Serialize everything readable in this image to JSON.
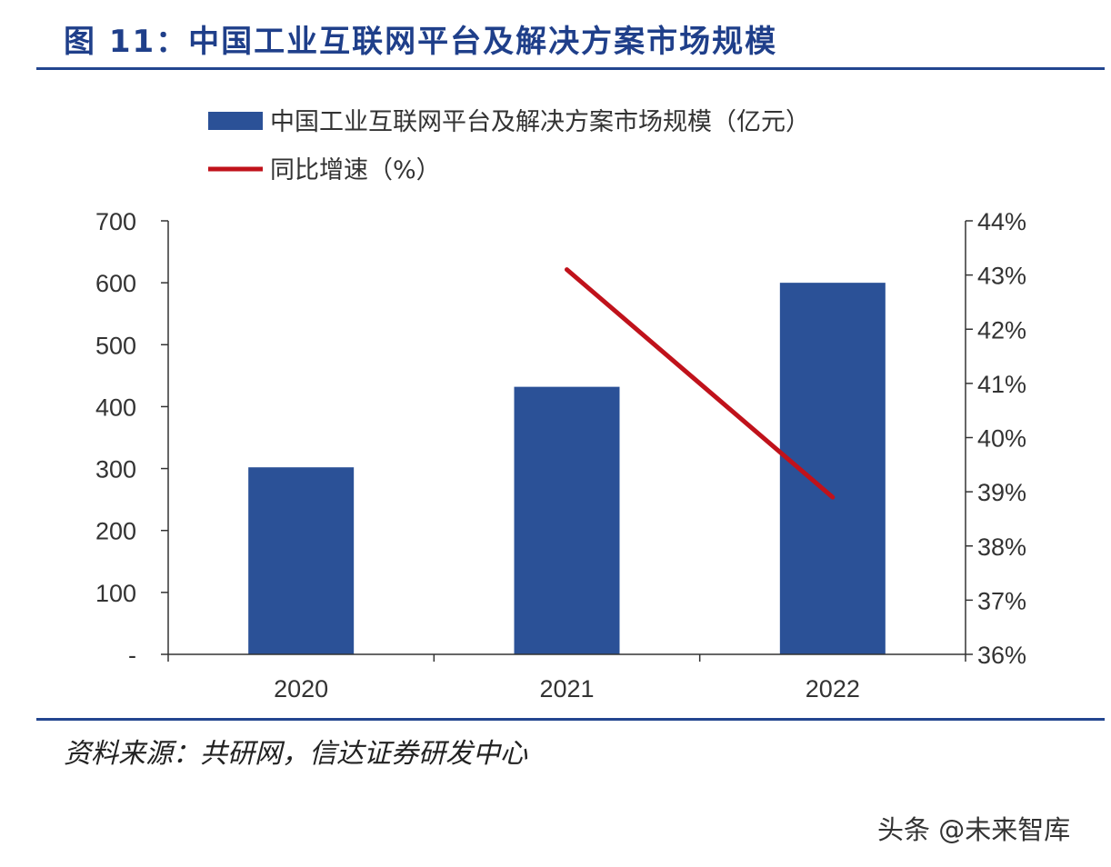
{
  "figure": {
    "title": "图 11：中国工业互联网平台及解决方案市场规模",
    "source": "资料来源：共研网，信达证券研发中心",
    "watermark": "头条 @未来智库"
  },
  "colors": {
    "bar": "#2b5197",
    "line": "#c0121b",
    "axis": "#333333",
    "rule": "#23468f"
  },
  "chart_data": {
    "type": "bar",
    "categories": [
      "2020",
      "2021",
      "2022"
    ],
    "series": [
      {
        "name": "中国工业互联网平台及解决方案市场规模（亿元）",
        "type": "bar",
        "axis": "left",
        "values": [
          302,
          432,
          600
        ]
      },
      {
        "name": "同比增速（%）",
        "type": "line",
        "axis": "right",
        "values": [
          null,
          43.1,
          38.9
        ]
      }
    ],
    "y_left": {
      "ylim": [
        0,
        700
      ],
      "ticks": [
        "-",
        "100",
        "200",
        "300",
        "400",
        "500",
        "600",
        "700"
      ]
    },
    "y_right": {
      "ylim": [
        36,
        44
      ],
      "ticks": [
        "36%",
        "37%",
        "38%",
        "39%",
        "40%",
        "41%",
        "42%",
        "43%",
        "44%"
      ]
    },
    "legend_placement": "top-left",
    "grid": false
  }
}
